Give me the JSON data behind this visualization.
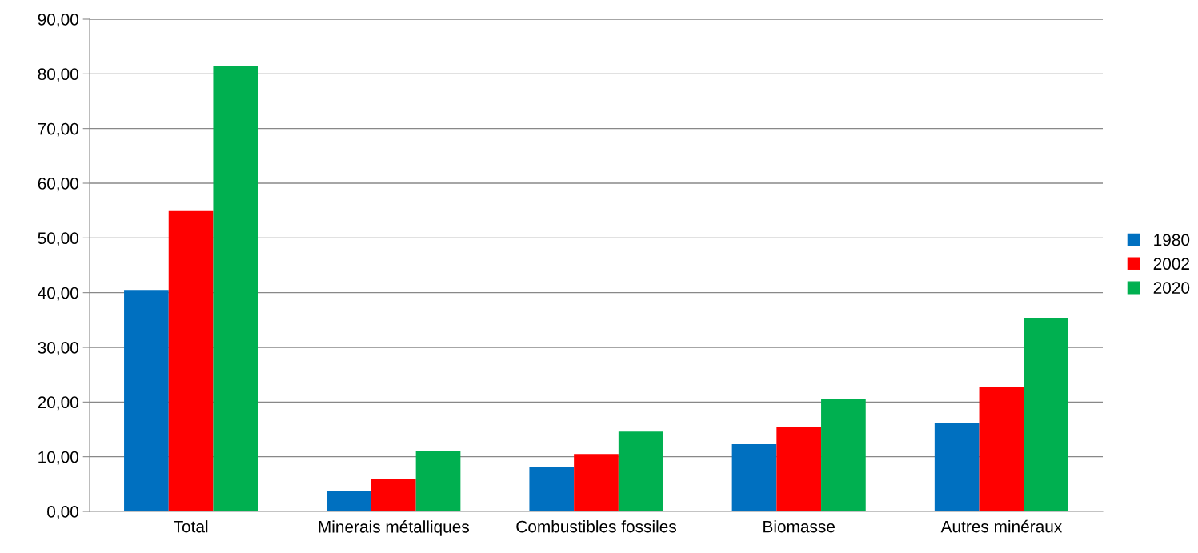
{
  "chart_data": {
    "type": "bar",
    "categories": [
      "Total",
      "Minerais métalliques",
      "Combustibles fossiles",
      "Biomasse",
      "Autres minéraux"
    ],
    "series": [
      {
        "name": "1980",
        "color": "#0070c0",
        "values": [
          40.5,
          3.7,
          8.2,
          12.3,
          16.2
        ]
      },
      {
        "name": "2002",
        "color": "#ff0000",
        "values": [
          54.9,
          5.9,
          10.5,
          15.5,
          22.8
        ]
      },
      {
        "name": "2020",
        "color": "#00b050",
        "values": [
          81.5,
          11.1,
          14.6,
          20.5,
          35.4
        ]
      }
    ],
    "ylim": [
      0,
      90
    ],
    "yticks": [
      {
        "value": 0,
        "label": "0,00"
      },
      {
        "value": 10,
        "label": "10,00"
      },
      {
        "value": 20,
        "label": "20,00"
      },
      {
        "value": 30,
        "label": "30,00"
      },
      {
        "value": 40,
        "label": "40,00"
      },
      {
        "value": 50,
        "label": "50,00"
      },
      {
        "value": 60,
        "label": "60,00"
      },
      {
        "value": 70,
        "label": "70,00"
      },
      {
        "value": 80,
        "label": "80,00"
      },
      {
        "value": 90,
        "label": "90,00"
      }
    ],
    "grid": "y",
    "legend": "right"
  }
}
